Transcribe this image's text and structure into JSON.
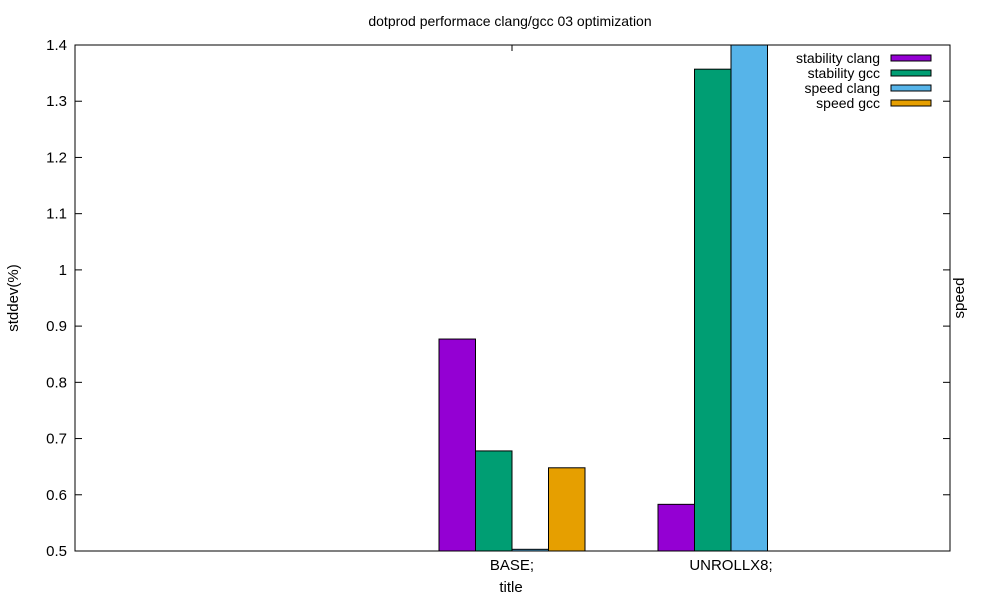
{
  "chart_data": {
    "type": "bar",
    "title": "dotprod performace clang/gcc 03 optimization",
    "xlabel": "title",
    "ylabel": "stddev(%)",
    "y2label": "speed",
    "categories": [
      "BASE;",
      "UNROLLX8;"
    ],
    "ylim": [
      0.5,
      1.4
    ],
    "yticks": [
      "0.5",
      "0.6",
      "0.7",
      "0.8",
      "0.9",
      "1",
      "1.1",
      "1.2",
      "1.3",
      "1.4"
    ],
    "series": [
      {
        "name": "stability clang",
        "color": "#9400d3",
        "values": [
          0.877,
          0.583
        ]
      },
      {
        "name": "stability gcc",
        "color": "#009e73",
        "values": [
          0.678,
          1.357
        ]
      },
      {
        "name": "speed clang",
        "color": "#56b4e9",
        "values": [
          0.503,
          1.4
        ]
      },
      {
        "name": "speed gcc",
        "color": "#e69f00",
        "values": [
          0.648,
          null
        ]
      }
    ],
    "legend_position": "top-right",
    "grid": false
  }
}
